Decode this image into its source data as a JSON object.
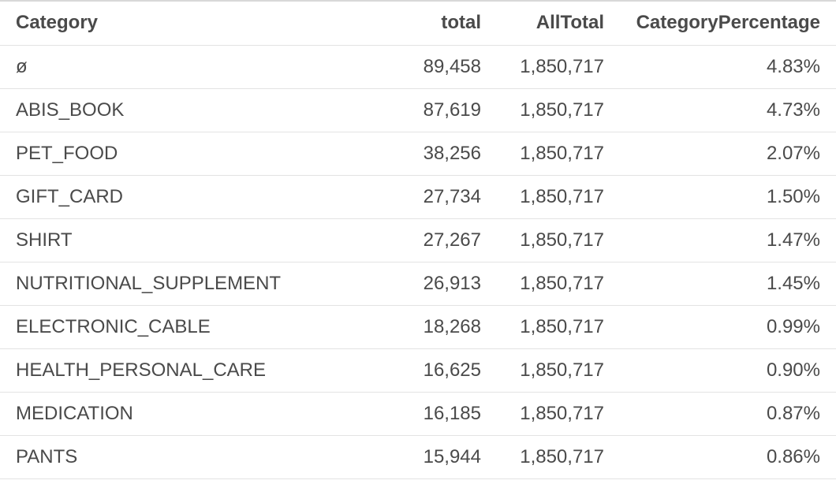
{
  "table": {
    "columns": {
      "category": "Category",
      "total": "total",
      "all_total": "AllTotal",
      "category_percentage": "CategoryPercentage"
    },
    "rows": [
      {
        "category": "ø",
        "total": "89,458",
        "all_total": "1,850,717",
        "category_percentage": "4.83%"
      },
      {
        "category": "ABIS_BOOK",
        "total": "87,619",
        "all_total": "1,850,717",
        "category_percentage": "4.73%"
      },
      {
        "category": "PET_FOOD",
        "total": "38,256",
        "all_total": "1,850,717",
        "category_percentage": "2.07%"
      },
      {
        "category": "GIFT_CARD",
        "total": "27,734",
        "all_total": "1,850,717",
        "category_percentage": "1.50%"
      },
      {
        "category": "SHIRT",
        "total": "27,267",
        "all_total": "1,850,717",
        "category_percentage": "1.47%"
      },
      {
        "category": "NUTRITIONAL_SUPPLEMENT",
        "total": "26,913",
        "all_total": "1,850,717",
        "category_percentage": "1.45%"
      },
      {
        "category": "ELECTRONIC_CABLE",
        "total": "18,268",
        "all_total": "1,850,717",
        "category_percentage": "0.99%"
      },
      {
        "category": "HEALTH_PERSONAL_CARE",
        "total": "16,625",
        "all_total": "1,850,717",
        "category_percentage": "0.90%"
      },
      {
        "category": "MEDICATION",
        "total": "16,185",
        "all_total": "1,850,717",
        "category_percentage": "0.87%"
      },
      {
        "category": "PANTS",
        "total": "15,944",
        "all_total": "1,850,717",
        "category_percentage": "0.86%"
      }
    ]
  }
}
